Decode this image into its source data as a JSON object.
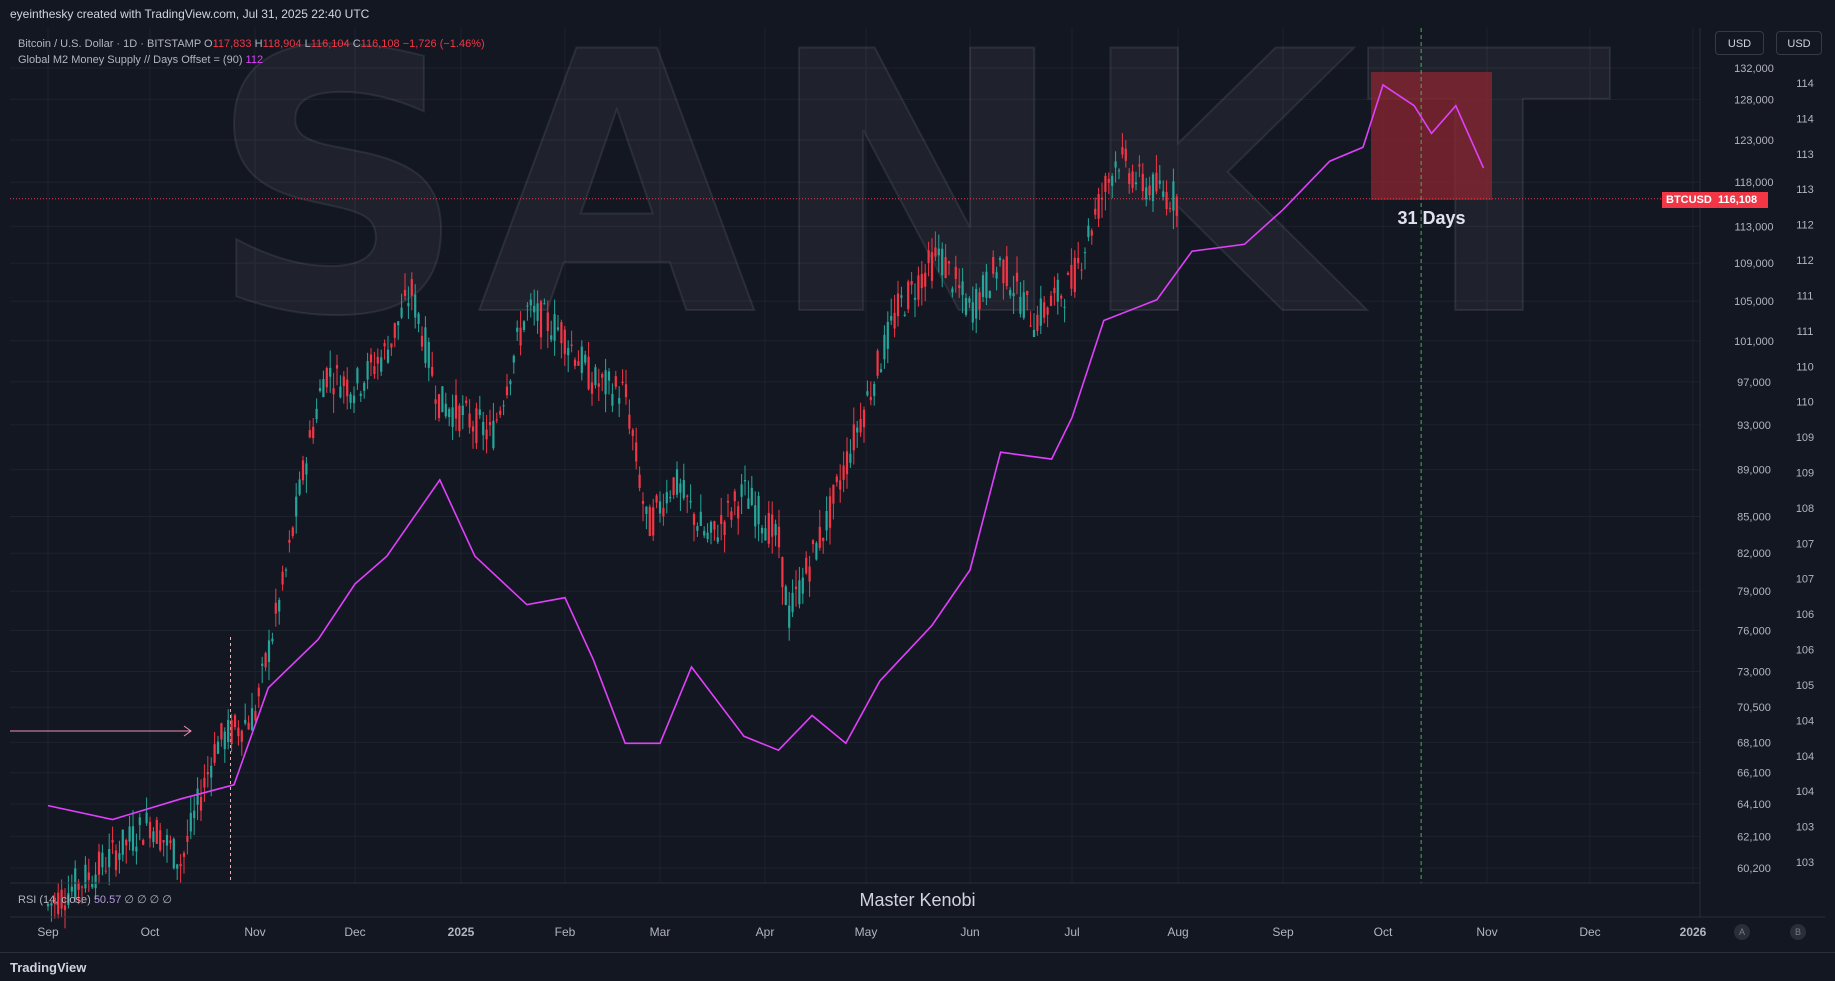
{
  "header": {
    "credit": "eyeinthesky created with TradingView.com, Jul 31, 2025 22:40 UTC"
  },
  "legend": {
    "symbol": "Bitcoin / U.S. Dollar · 1D · BITSTAMP",
    "o_label": "O",
    "o_val": "117,833",
    "h_label": "H",
    "h_val": "118,904",
    "l_label": "L",
    "l_val": "116,104",
    "c_label": "C",
    "c_val": "116,108",
    "change": "−1,726 (−1.46%)",
    "indicator": "Global M2 Money Supply // Days Offset = (90)",
    "indicator_val": "112"
  },
  "buttons": {
    "usd_left": "USD",
    "usd_right": "USD"
  },
  "rsi": {
    "label": "RSI (14, close)",
    "value": "50.57",
    "placeholders": "∅ ∅ ∅ ∅"
  },
  "watermark": {
    "big": "SANKT",
    "author": "Master Kenobi"
  },
  "annotation": {
    "days": "31 Days"
  },
  "price_tag": {
    "symbol": "BTCUSD",
    "price": "116,108"
  },
  "footer": {
    "logo": "TradingView",
    "btn_a": "A",
    "btn_b": "B"
  },
  "colors": {
    "bg": "#131722",
    "grid": "#1e222d",
    "up": "#26a69a",
    "down": "#f23645",
    "m2": "#e040fb",
    "projection_box": "#8b2530"
  },
  "chart_data": {
    "type": "line",
    "title": "Bitcoin / U.S. Dollar · 1D · BITSTAMP",
    "x_ticks": [
      "Sep",
      "Oct",
      "Nov",
      "Dec",
      "2025",
      "Feb",
      "Mar",
      "Apr",
      "May",
      "Jun",
      "Jul",
      "Aug",
      "Sep",
      "Oct",
      "Nov",
      "Dec",
      "2026"
    ],
    "btc_price_ticks": [
      "132,000",
      "128,000",
      "123,000",
      "118,000",
      "113,000",
      "109,000",
      "105,000",
      "101,000",
      "97,000",
      "93,000",
      "89,000",
      "85,000",
      "82,000",
      "79,000",
      "76,000",
      "73,000",
      "70,500",
      "68,100",
      "66,100",
      "64,100",
      "62,100",
      "60,200"
    ],
    "m2_ticks": [
      "114",
      "114",
      "113",
      "113",
      "112",
      "112",
      "111",
      "111",
      "110",
      "110",
      "109",
      "109",
      "108",
      "107",
      "107",
      "106",
      "106",
      "105",
      "104",
      "104",
      "104",
      "103",
      "103"
    ],
    "series": [
      {
        "name": "BTCUSD",
        "points": [
          [
            "Sep 1",
            58000
          ],
          [
            "Sep 15",
            60000
          ],
          [
            "Oct 1",
            63000
          ],
          [
            "Oct 10",
            60500
          ],
          [
            "Oct 20",
            68000
          ],
          [
            "Nov 1",
            70000
          ],
          [
            "Nov 10",
            80000
          ],
          [
            "Nov 15",
            88000
          ],
          [
            "Nov 22",
            98000
          ],
          [
            "Dec 1",
            96500
          ],
          [
            "Dec 10",
            100000
          ],
          [
            "Dec 17",
            106000
          ],
          [
            "Dec 25",
            95000
          ],
          [
            "Jan 1",
            94000
          ],
          [
            "Jan 10",
            92000
          ],
          [
            "Jan 20",
            104000
          ],
          [
            "Jan 30",
            102000
          ],
          [
            "Feb 10",
            97000
          ],
          [
            "Feb 20",
            96000
          ],
          [
            "Feb 27",
            84000
          ],
          [
            "Mar 5",
            88000
          ],
          [
            "Mar 15",
            83000
          ],
          [
            "Mar 25",
            87000
          ],
          [
            "Apr 5",
            83000
          ],
          [
            "Apr 8",
            77000
          ],
          [
            "Apr 20",
            85000
          ],
          [
            "May 1",
            95000
          ],
          [
            "May 10",
            104000
          ],
          [
            "May 22",
            110000
          ],
          [
            "Jun 1",
            104000
          ],
          [
            "Jun 10",
            109000
          ],
          [
            "Jun 20",
            103000
          ],
          [
            "Jul 1",
            107000
          ],
          [
            "Jul 10",
            117000
          ],
          [
            "Jul 14",
            121000
          ],
          [
            "Jul 20",
            118000
          ],
          [
            "Jul 31",
            116108
          ]
        ]
      },
      {
        "name": "Global M2 Money Supply // Days Offset = (90)",
        "points": [
          [
            "Sep 1",
            103.9
          ],
          [
            "Sep 20",
            103.7
          ],
          [
            "Oct 10",
            104.0
          ],
          [
            "Oct 25",
            104.2
          ],
          [
            "Nov 5",
            105.6
          ],
          [
            "Nov 20",
            106.3
          ],
          [
            "Dec 1",
            107.1
          ],
          [
            "Dec 10",
            107.5
          ],
          [
            "Dec 25",
            108.6
          ],
          [
            "Jan 5",
            107.5
          ],
          [
            "Jan 20",
            106.8
          ],
          [
            "Feb 1",
            106.9
          ],
          [
            "Feb 10",
            106.0
          ],
          [
            "Feb 20",
            104.8
          ],
          [
            "Mar 1",
            104.8
          ],
          [
            "Mar 10",
            105.9
          ],
          [
            "Mar 25",
            104.9
          ],
          [
            "Apr 5",
            104.7
          ],
          [
            "Apr 15",
            105.2
          ],
          [
            "Apr 25",
            104.8
          ],
          [
            "May 5",
            105.7
          ],
          [
            "May 20",
            106.5
          ],
          [
            "Jun 1",
            107.3
          ],
          [
            "Jun 10",
            109.0
          ],
          [
            "Jun 25",
            108.9
          ],
          [
            "Jul 1",
            109.5
          ],
          [
            "Jul 10",
            110.9
          ],
          [
            "Jul 25",
            111.2
          ],
          [
            "Aug 5",
            111.9
          ],
          [
            "Aug 20",
            112.0
          ],
          [
            "Sep 1",
            112.5
          ],
          [
            "Sep 15",
            113.2
          ],
          [
            "Sep 25",
            113.4
          ],
          [
            "Oct 1",
            114.3
          ],
          [
            "Oct 10",
            114.0
          ],
          [
            "Oct 15",
            113.6
          ],
          [
            "Oct 22",
            114.0
          ],
          [
            "Oct 30",
            113.1
          ]
        ]
      }
    ],
    "annotations": [
      "31 Days"
    ],
    "legend_position": "top-left",
    "grid": true
  }
}
